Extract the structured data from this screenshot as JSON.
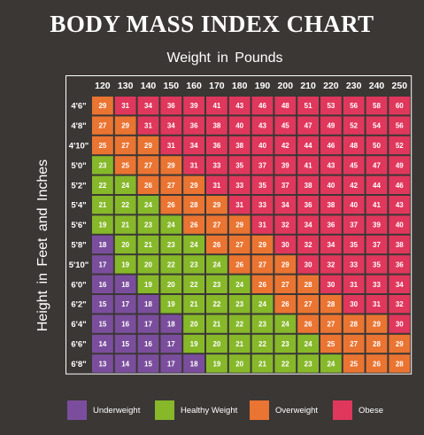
{
  "chart_data": {
    "type": "heatmap",
    "title": "BODY MASS INDEX CHART",
    "xlabel": "Weight in Pounds",
    "ylabel": "Height in Feet and Inches",
    "x": [
      "120",
      "130",
      "140",
      "150",
      "160",
      "170",
      "180",
      "190",
      "200",
      "210",
      "220",
      "230",
      "240",
      "250"
    ],
    "y": [
      "4'6\"",
      "4'8\"",
      "4'10\"",
      "5'0\"",
      "5'2\"",
      "5'4\"",
      "5'6\"",
      "5'8\"",
      "5'10\"",
      "6'0\"",
      "6'2\"",
      "6'4\"",
      "6'6\"",
      "6'8\""
    ],
    "values": [
      [
        29,
        31,
        34,
        36,
        39,
        41,
        43,
        46,
        48,
        51,
        53,
        56,
        58,
        60
      ],
      [
        27,
        29,
        31,
        34,
        36,
        38,
        40,
        43,
        45,
        47,
        49,
        52,
        54,
        56
      ],
      [
        25,
        27,
        29,
        31,
        34,
        36,
        38,
        40,
        42,
        44,
        46,
        48,
        50,
        52
      ],
      [
        23,
        25,
        27,
        29,
        31,
        33,
        35,
        37,
        39,
        41,
        43,
        45,
        47,
        49
      ],
      [
        22,
        24,
        26,
        27,
        29,
        31,
        33,
        35,
        37,
        38,
        40,
        42,
        44,
        46
      ],
      [
        21,
        22,
        24,
        26,
        28,
        29,
        31,
        33,
        34,
        36,
        38,
        40,
        41,
        43
      ],
      [
        19,
        21,
        23,
        24,
        26,
        27,
        29,
        31,
        32,
        34,
        36,
        37,
        39,
        40
      ],
      [
        18,
        20,
        21,
        23,
        24,
        26,
        27,
        29,
        30,
        32,
        34,
        35,
        37,
        38
      ],
      [
        17,
        19,
        20,
        22,
        23,
        24,
        26,
        27,
        29,
        30,
        32,
        33,
        35,
        36
      ],
      [
        16,
        18,
        19,
        20,
        22,
        23,
        24,
        26,
        27,
        28,
        30,
        31,
        33,
        34
      ],
      [
        15,
        17,
        18,
        19,
        21,
        22,
        23,
        24,
        26,
        27,
        28,
        30,
        31,
        32
      ],
      [
        15,
        16,
        17,
        18,
        20,
        21,
        22,
        23,
        24,
        26,
        27,
        28,
        29,
        30
      ],
      [
        14,
        15,
        16,
        17,
        19,
        20,
        21,
        22,
        23,
        24,
        25,
        27,
        28,
        29
      ],
      [
        13,
        14,
        15,
        17,
        18,
        19,
        20,
        21,
        22,
        23,
        24,
        25,
        26,
        28
      ]
    ],
    "categories_legend": [
      {
        "label": "Underweight",
        "color": "#7b4e9d",
        "max": 18
      },
      {
        "label": "Healthy Weight",
        "color": "#86b82a",
        "max": 24
      },
      {
        "label": "Overweight",
        "color": "#ea7431",
        "max": 29
      },
      {
        "label": "Obese",
        "color": "#e0375c",
        "max": 999
      }
    ],
    "legend_position": "bottom"
  }
}
